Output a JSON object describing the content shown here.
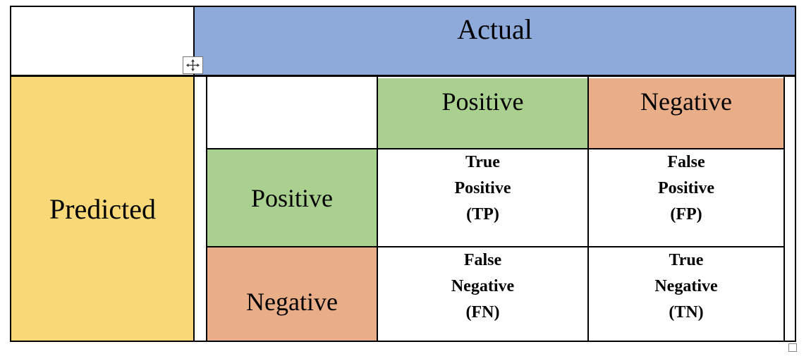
{
  "header": {
    "actual": "Actual"
  },
  "side": {
    "predicted": "Predicted"
  },
  "columns": {
    "positive": "Positive",
    "negative": "Negative"
  },
  "rows": {
    "positive": "Positive",
    "negative": "Negative"
  },
  "cells": {
    "tp": [
      "True",
      "Positive",
      "(TP)"
    ],
    "fp": [
      "False",
      "Positive",
      "(FP)"
    ],
    "fn": [
      "False",
      "Negative",
      "(FN)"
    ],
    "tn": [
      "True",
      "Negative",
      "(TN)"
    ]
  },
  "colors": {
    "actual_header": "#8eaadb",
    "predicted_side": "#f9d877",
    "positive_green": "#a9d08e",
    "negative_orange": "#e9ad88"
  },
  "icons": {
    "move_handle": "move-arrows-icon",
    "resize_handle": "resize-handle-icon"
  }
}
